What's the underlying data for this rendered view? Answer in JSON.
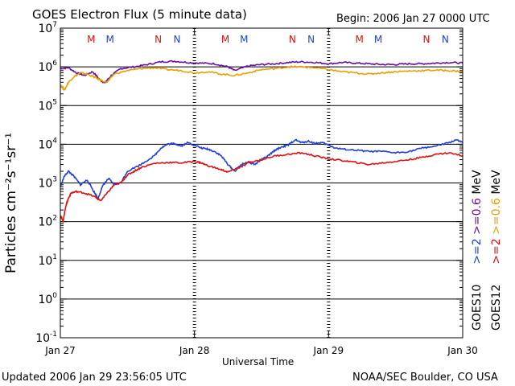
{
  "header": {
    "title": "GOES Electron Flux (5 minute data)",
    "begin": "Begin: 2006 Jan 27 0000 UTC"
  },
  "footer": {
    "updated": "Updated 2006 Jan 29 23:56:05 UTC",
    "credit": "NOAA/SEC Boulder, CO USA"
  },
  "colors": {
    "goes10_ge2": "#1f3fd6",
    "goes10_ge06": "#6a0fa0",
    "goes12_ge2": "#e01010",
    "goes12_ge06": "#e8a000"
  },
  "legend": {
    "goes10": "GOES10",
    "goes12": "GOES12",
    "goes10_ge2": ">=2",
    "goes10_ge06": ">=0.6",
    "goes12_ge2": ">=2",
    "goes12_ge06": ">=0.6",
    "unit": "MeV"
  },
  "chart_data": {
    "type": "line",
    "title": "GOES Electron Flux (5 minute data)",
    "xlabel": "Universal Time",
    "ylabel": "Particles cm⁻²s⁻¹sr⁻¹",
    "yscale": "log",
    "ylim": [
      0.1,
      10000000
    ],
    "xlim": [
      0,
      3
    ],
    "x_unit": "days since 2006 Jan 27 00:00 UTC",
    "x_tick_labels": [
      "Jan 27",
      "Jan 28",
      "Jan 29",
      "Jan 30"
    ],
    "y_tick_labels": [
      {
        "base": "10",
        "exp": "7"
      },
      {
        "base": "10",
        "exp": "6"
      },
      {
        "base": "10",
        "exp": "5"
      },
      {
        "base": "10",
        "exp": "4"
      },
      {
        "base": "10",
        "exp": "3"
      },
      {
        "base": "10",
        "exp": "2"
      },
      {
        "base": "10",
        "exp": "1"
      },
      {
        "base": "10",
        "exp": "0"
      },
      {
        "base": "10",
        "exp": "-1"
      }
    ],
    "threshold": 1000,
    "grid": true,
    "magnetopause_markers": [
      {
        "label": "M",
        "satellite": "GOES12",
        "x": 0.23
      },
      {
        "label": "M",
        "satellite": "GOES10",
        "x": 0.37
      },
      {
        "label": "N",
        "satellite": "GOES12",
        "x": 0.73
      },
      {
        "label": "N",
        "satellite": "GOES10",
        "x": 0.87
      },
      {
        "label": "M",
        "satellite": "GOES12",
        "x": 1.23
      },
      {
        "label": "M",
        "satellite": "GOES10",
        "x": 1.37
      },
      {
        "label": "N",
        "satellite": "GOES12",
        "x": 1.73
      },
      {
        "label": "N",
        "satellite": "GOES10",
        "x": 1.87
      },
      {
        "label": "M",
        "satellite": "GOES12",
        "x": 2.23
      },
      {
        "label": "M",
        "satellite": "GOES10",
        "x": 2.37
      },
      {
        "label": "N",
        "satellite": "GOES12",
        "x": 2.73
      },
      {
        "label": "N",
        "satellite": "GOES10",
        "x": 2.87
      }
    ],
    "series": [
      {
        "name": "GOES10 >=0.6 MeV",
        "color": "#6a0fa0",
        "x": [
          0,
          0.06,
          0.12,
          0.18,
          0.24,
          0.3,
          0.33,
          0.38,
          0.45,
          0.55,
          0.65,
          0.75,
          0.85,
          0.95,
          1.05,
          1.15,
          1.25,
          1.3,
          1.4,
          1.5,
          1.6,
          1.7,
          1.8,
          1.9,
          2.0,
          2.1,
          2.2,
          2.3,
          2.4,
          2.5,
          2.6,
          2.7,
          2.8,
          2.9,
          3.0
        ],
        "y": [
          900000,
          950000,
          700000,
          600000,
          750000,
          450000,
          380000,
          600000,
          900000,
          1000000,
          1150000,
          1350000,
          1400000,
          1300000,
          1250000,
          1200000,
          1000000,
          800000,
          1050000,
          1150000,
          1200000,
          1300000,
          1350000,
          1300000,
          1200000,
          1300000,
          1250000,
          1200000,
          1150000,
          1150000,
          1200000,
          1200000,
          1250000,
          1300000,
          1250000
        ]
      },
      {
        "name": "GOES12 >=0.6 MeV",
        "color": "#e8a000",
        "x": [
          0,
          0.03,
          0.06,
          0.1,
          0.15,
          0.2,
          0.25,
          0.3,
          0.35,
          0.4,
          0.5,
          0.6,
          0.7,
          0.8,
          0.9,
          1.0,
          1.1,
          1.2,
          1.3,
          1.4,
          1.5,
          1.6,
          1.7,
          1.8,
          1.9,
          2.0,
          2.1,
          2.2,
          2.3,
          2.4,
          2.5,
          2.6,
          2.7,
          2.8,
          2.9,
          3.0
        ],
        "y": [
          350000,
          250000,
          400000,
          550000,
          700000,
          650000,
          550000,
          450000,
          400000,
          650000,
          800000,
          900000,
          950000,
          850000,
          800000,
          700000,
          750000,
          650000,
          600000,
          700000,
          850000,
          900000,
          1000000,
          1000000,
          950000,
          850000,
          750000,
          700000,
          650000,
          700000,
          750000,
          780000,
          800000,
          820000,
          800000,
          750000
        ]
      },
      {
        "name": "GOES10 >=2 MeV",
        "color": "#1f3fd6",
        "x": [
          0,
          0.03,
          0.06,
          0.1,
          0.15,
          0.2,
          0.25,
          0.28,
          0.32,
          0.36,
          0.4,
          0.45,
          0.5,
          0.6,
          0.7,
          0.75,
          0.8,
          0.85,
          0.9,
          0.95,
          1.0,
          1.05,
          1.1,
          1.15,
          1.2,
          1.25,
          1.3,
          1.35,
          1.4,
          1.45,
          1.5,
          1.55,
          1.6,
          1.65,
          1.7,
          1.75,
          1.8,
          1.85,
          1.9,
          1.95,
          2.0,
          2.05,
          2.1,
          2.2,
          2.3,
          2.4,
          2.5,
          2.6,
          2.7,
          2.8,
          2.9,
          2.95,
          3.0
        ],
        "y": [
          800,
          1500,
          2000,
          1500,
          900,
          1200,
          600,
          400,
          900,
          1300,
          900,
          1000,
          2000,
          3000,
          5000,
          8000,
          10000,
          10500,
          9000,
          11000,
          9500,
          8000,
          7500,
          6500,
          5000,
          3000,
          2000,
          3000,
          3500,
          3000,
          4000,
          5000,
          7000,
          8500,
          9500,
          13000,
          11000,
          12000,
          10500,
          11000,
          9500,
          8000,
          7500,
          7000,
          6500,
          6500,
          6000,
          6500,
          8000,
          9000,
          11000,
          13000,
          11000
        ]
      },
      {
        "name": "GOES12 >=2 MeV",
        "color": "#e01010",
        "x": [
          0,
          0.02,
          0.04,
          0.06,
          0.08,
          0.12,
          0.18,
          0.25,
          0.3,
          0.36,
          0.4,
          0.45,
          0.5,
          0.55,
          0.6,
          0.7,
          0.8,
          0.9,
          1.0,
          1.05,
          1.1,
          1.2,
          1.25,
          1.3,
          1.35,
          1.4,
          1.5,
          1.6,
          1.7,
          1.8,
          1.9,
          2.0,
          2.1,
          2.2,
          2.3,
          2.4,
          2.5,
          2.6,
          2.7,
          2.8,
          2.9,
          3.0
        ],
        "y": [
          150,
          100,
          250,
          400,
          550,
          600,
          550,
          450,
          350,
          600,
          900,
          1000,
          1600,
          2000,
          2500,
          3200,
          3400,
          3300,
          3600,
          3300,
          2800,
          2200,
          1900,
          2300,
          2600,
          3300,
          4000,
          5000,
          5500,
          6000,
          5000,
          4200,
          3800,
          3400,
          3000,
          3300,
          3600,
          4000,
          4600,
          5500,
          6000,
          5000
        ]
      }
    ]
  }
}
